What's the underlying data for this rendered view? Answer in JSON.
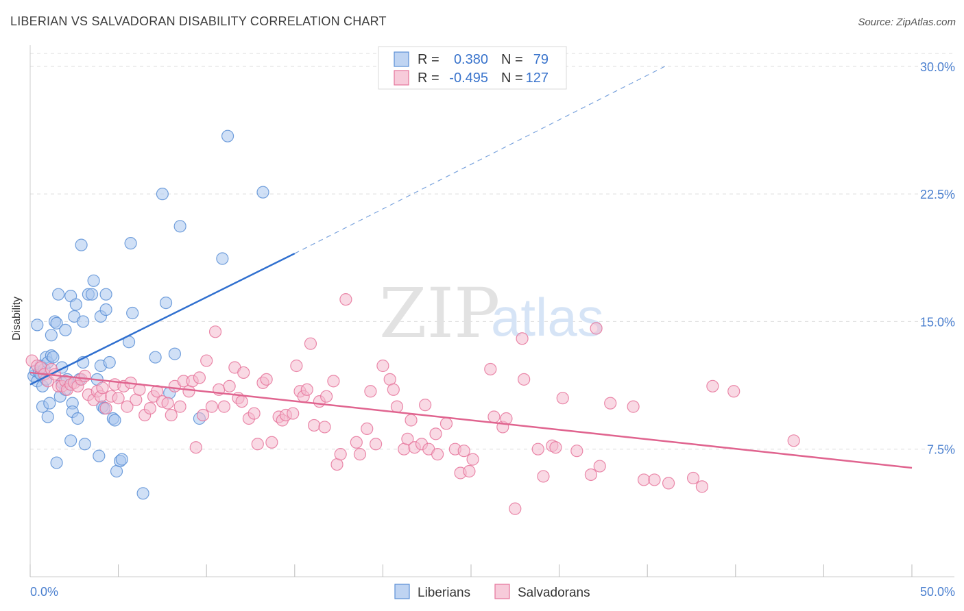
{
  "title": "LIBERIAN VS SALVADORAN DISABILITY CORRELATION CHART",
  "source": "Source: ZipAtlas.com",
  "watermark": {
    "zip": "ZIP",
    "atlas": "atlas"
  },
  "chart_data": {
    "type": "scatter",
    "ylabel": "Disability",
    "xlabel": "",
    "xlim": [
      0,
      50
    ],
    "ylim": [
      0,
      31
    ],
    "x_tick_labels": [
      "0.0%",
      "50.0%"
    ],
    "y_ticks": [
      7.5,
      15.0,
      22.5,
      30.0
    ],
    "y_tick_labels": [
      "7.5%",
      "15.0%",
      "22.5%",
      "30.0%"
    ],
    "grid": "horizontal dashed",
    "legend_position": "top-center",
    "series": [
      {
        "name": "Liberians",
        "color": "#5b8fd6",
        "fill": "#a9c6ee",
        "R": "0.380",
        "N": "79",
        "trend": {
          "x0": 0.0,
          "y0": 11.3,
          "x1": 15.0,
          "y1": 19.0,
          "dash_to_x": 36.0,
          "dash_to_y": 30.0
        },
        "points": [
          [
            0.2,
            11.8
          ],
          [
            0.3,
            12.1
          ],
          [
            0.4,
            11.5
          ],
          [
            0.4,
            14.8
          ],
          [
            0.5,
            12.0
          ],
          [
            0.6,
            12.4
          ],
          [
            0.6,
            11.9
          ],
          [
            0.7,
            10.0
          ],
          [
            0.7,
            11.2
          ],
          [
            0.8,
            12.2
          ],
          [
            0.9,
            12.9
          ],
          [
            0.9,
            11.6
          ],
          [
            1.0,
            9.4
          ],
          [
            1.0,
            12.6
          ],
          [
            1.1,
            10.2
          ],
          [
            1.2,
            14.2
          ],
          [
            1.2,
            13.0
          ],
          [
            1.3,
            12.9
          ],
          [
            1.4,
            15.0
          ],
          [
            1.5,
            14.9
          ],
          [
            1.5,
            6.7
          ],
          [
            1.6,
            16.6
          ],
          [
            1.7,
            10.6
          ],
          [
            1.8,
            12.3
          ],
          [
            1.8,
            11.4
          ],
          [
            2.0,
            11.0
          ],
          [
            2.0,
            14.5
          ],
          [
            2.1,
            11.6
          ],
          [
            2.3,
            8.0
          ],
          [
            2.3,
            16.5
          ],
          [
            2.4,
            10.2
          ],
          [
            2.4,
            9.7
          ],
          [
            2.5,
            15.3
          ],
          [
            2.6,
            16.0
          ],
          [
            2.7,
            9.3
          ],
          [
            2.8,
            11.6
          ],
          [
            2.9,
            19.5
          ],
          [
            3.0,
            12.6
          ],
          [
            3.0,
            15.0
          ],
          [
            3.1,
            7.8
          ],
          [
            3.3,
            16.6
          ],
          [
            3.5,
            16.6
          ],
          [
            3.6,
            17.4
          ],
          [
            3.8,
            11.6
          ],
          [
            3.9,
            7.1
          ],
          [
            4.0,
            12.4
          ],
          [
            4.0,
            15.3
          ],
          [
            4.1,
            10.0
          ],
          [
            4.2,
            9.9
          ],
          [
            4.3,
            16.6
          ],
          [
            4.3,
            15.7
          ],
          [
            4.5,
            12.6
          ],
          [
            4.7,
            9.3
          ],
          [
            4.8,
            9.2
          ],
          [
            4.9,
            6.2
          ],
          [
            5.1,
            6.8
          ],
          [
            5.2,
            6.9
          ],
          [
            5.6,
            13.8
          ],
          [
            5.7,
            19.6
          ],
          [
            5.8,
            15.5
          ],
          [
            6.4,
            4.9
          ],
          [
            7.1,
            12.9
          ],
          [
            7.5,
            22.5
          ],
          [
            7.7,
            16.1
          ],
          [
            7.9,
            10.8
          ],
          [
            8.2,
            13.1
          ],
          [
            8.5,
            20.6
          ],
          [
            9.6,
            9.3
          ],
          [
            10.9,
            18.7
          ],
          [
            11.2,
            25.9
          ],
          [
            13.2,
            22.6
          ]
        ]
      },
      {
        "name": "Salvadorans",
        "color": "#e6749b",
        "fill": "#f4b9cd",
        "R": "-0.495",
        "N": "127",
        "trend": {
          "x0": 0.0,
          "y0": 12.0,
          "x1": 50.0,
          "y1": 6.4
        },
        "points": [
          [
            0.1,
            12.7
          ],
          [
            0.4,
            12.4
          ],
          [
            0.6,
            12.3
          ],
          [
            0.8,
            11.9
          ],
          [
            1.0,
            11.5
          ],
          [
            1.2,
            12.2
          ],
          [
            1.4,
            11.9
          ],
          [
            1.6,
            11.2
          ],
          [
            1.8,
            11.2
          ],
          [
            2.0,
            11.5
          ],
          [
            2.1,
            11.0
          ],
          [
            2.3,
            11.3
          ],
          [
            2.5,
            11.4
          ],
          [
            2.7,
            11.2
          ],
          [
            2.9,
            11.6
          ],
          [
            3.1,
            11.8
          ],
          [
            3.3,
            10.7
          ],
          [
            3.6,
            10.4
          ],
          [
            3.8,
            10.9
          ],
          [
            4.0,
            10.6
          ],
          [
            4.1,
            11.1
          ],
          [
            4.3,
            9.9
          ],
          [
            4.6,
            10.6
          ],
          [
            4.8,
            11.3
          ],
          [
            5.0,
            10.5
          ],
          [
            5.3,
            11.2
          ],
          [
            5.5,
            10.0
          ],
          [
            5.7,
            11.4
          ],
          [
            6.0,
            10.4
          ],
          [
            6.2,
            11.0
          ],
          [
            6.5,
            9.5
          ],
          [
            6.8,
            9.9
          ],
          [
            7.0,
            10.6
          ],
          [
            7.2,
            10.9
          ],
          [
            7.5,
            10.3
          ],
          [
            7.8,
            10.2
          ],
          [
            8.0,
            9.5
          ],
          [
            8.2,
            11.2
          ],
          [
            8.5,
            10.0
          ],
          [
            8.7,
            11.5
          ],
          [
            9.0,
            10.9
          ],
          [
            9.2,
            11.5
          ],
          [
            9.4,
            7.6
          ],
          [
            9.6,
            11.7
          ],
          [
            9.8,
            9.5
          ],
          [
            10.0,
            12.7
          ],
          [
            10.3,
            10.0
          ],
          [
            10.5,
            14.4
          ],
          [
            10.7,
            11.0
          ],
          [
            11.0,
            10.0
          ],
          [
            11.3,
            11.2
          ],
          [
            11.6,
            12.3
          ],
          [
            11.8,
            10.5
          ],
          [
            12.0,
            10.3
          ],
          [
            12.1,
            12.0
          ],
          [
            12.4,
            9.3
          ],
          [
            12.7,
            9.6
          ],
          [
            12.9,
            7.8
          ],
          [
            13.2,
            11.4
          ],
          [
            13.4,
            11.6
          ],
          [
            13.7,
            7.9
          ],
          [
            14.1,
            9.4
          ],
          [
            14.3,
            9.2
          ],
          [
            14.5,
            9.5
          ],
          [
            14.9,
            9.6
          ],
          [
            15.1,
            12.4
          ],
          [
            15.3,
            10.9
          ],
          [
            15.5,
            10.6
          ],
          [
            15.7,
            11.0
          ],
          [
            15.9,
            13.7
          ],
          [
            16.1,
            8.9
          ],
          [
            16.4,
            10.3
          ],
          [
            16.7,
            8.8
          ],
          [
            16.8,
            10.6
          ],
          [
            17.2,
            11.5
          ],
          [
            17.4,
            6.6
          ],
          [
            17.6,
            7.2
          ],
          [
            17.9,
            16.3
          ],
          [
            18.5,
            7.9
          ],
          [
            18.7,
            7.2
          ],
          [
            19.1,
            8.7
          ],
          [
            19.3,
            10.9
          ],
          [
            19.6,
            7.8
          ],
          [
            20.0,
            12.4
          ],
          [
            20.4,
            11.6
          ],
          [
            20.6,
            11.0
          ],
          [
            20.8,
            10.0
          ],
          [
            21.2,
            7.5
          ],
          [
            21.4,
            8.1
          ],
          [
            21.6,
            9.2
          ],
          [
            21.8,
            7.6
          ],
          [
            22.2,
            7.8
          ],
          [
            22.4,
            10.1
          ],
          [
            22.6,
            7.5
          ],
          [
            23.0,
            8.4
          ],
          [
            23.1,
            7.2
          ],
          [
            23.6,
            9.0
          ],
          [
            24.1,
            7.5
          ],
          [
            24.4,
            6.1
          ],
          [
            24.6,
            7.4
          ],
          [
            24.9,
            6.2
          ],
          [
            25.1,
            6.9
          ],
          [
            26.1,
            12.2
          ],
          [
            26.3,
            9.4
          ],
          [
            26.8,
            8.8
          ],
          [
            27.0,
            9.3
          ],
          [
            27.5,
            4.0
          ],
          [
            27.9,
            14.0
          ],
          [
            28.0,
            11.6
          ],
          [
            28.8,
            7.5
          ],
          [
            29.1,
            5.9
          ],
          [
            29.6,
            7.7
          ],
          [
            29.8,
            7.6
          ],
          [
            30.2,
            10.5
          ],
          [
            31.0,
            7.4
          ],
          [
            31.8,
            6.0
          ],
          [
            32.1,
            14.6
          ],
          [
            32.3,
            6.5
          ],
          [
            32.9,
            10.2
          ],
          [
            34.2,
            10.0
          ],
          [
            34.8,
            5.7
          ],
          [
            35.4,
            5.7
          ],
          [
            36.2,
            5.5
          ],
          [
            37.6,
            5.8
          ],
          [
            38.1,
            5.3
          ],
          [
            38.7,
            11.2
          ],
          [
            39.9,
            10.9
          ],
          [
            43.3,
            8.0
          ]
        ]
      }
    ]
  },
  "bottom_legend": [
    "Liberians",
    "Salvadorans"
  ],
  "legend_labels": {
    "r": "R =",
    "n": "N ="
  }
}
